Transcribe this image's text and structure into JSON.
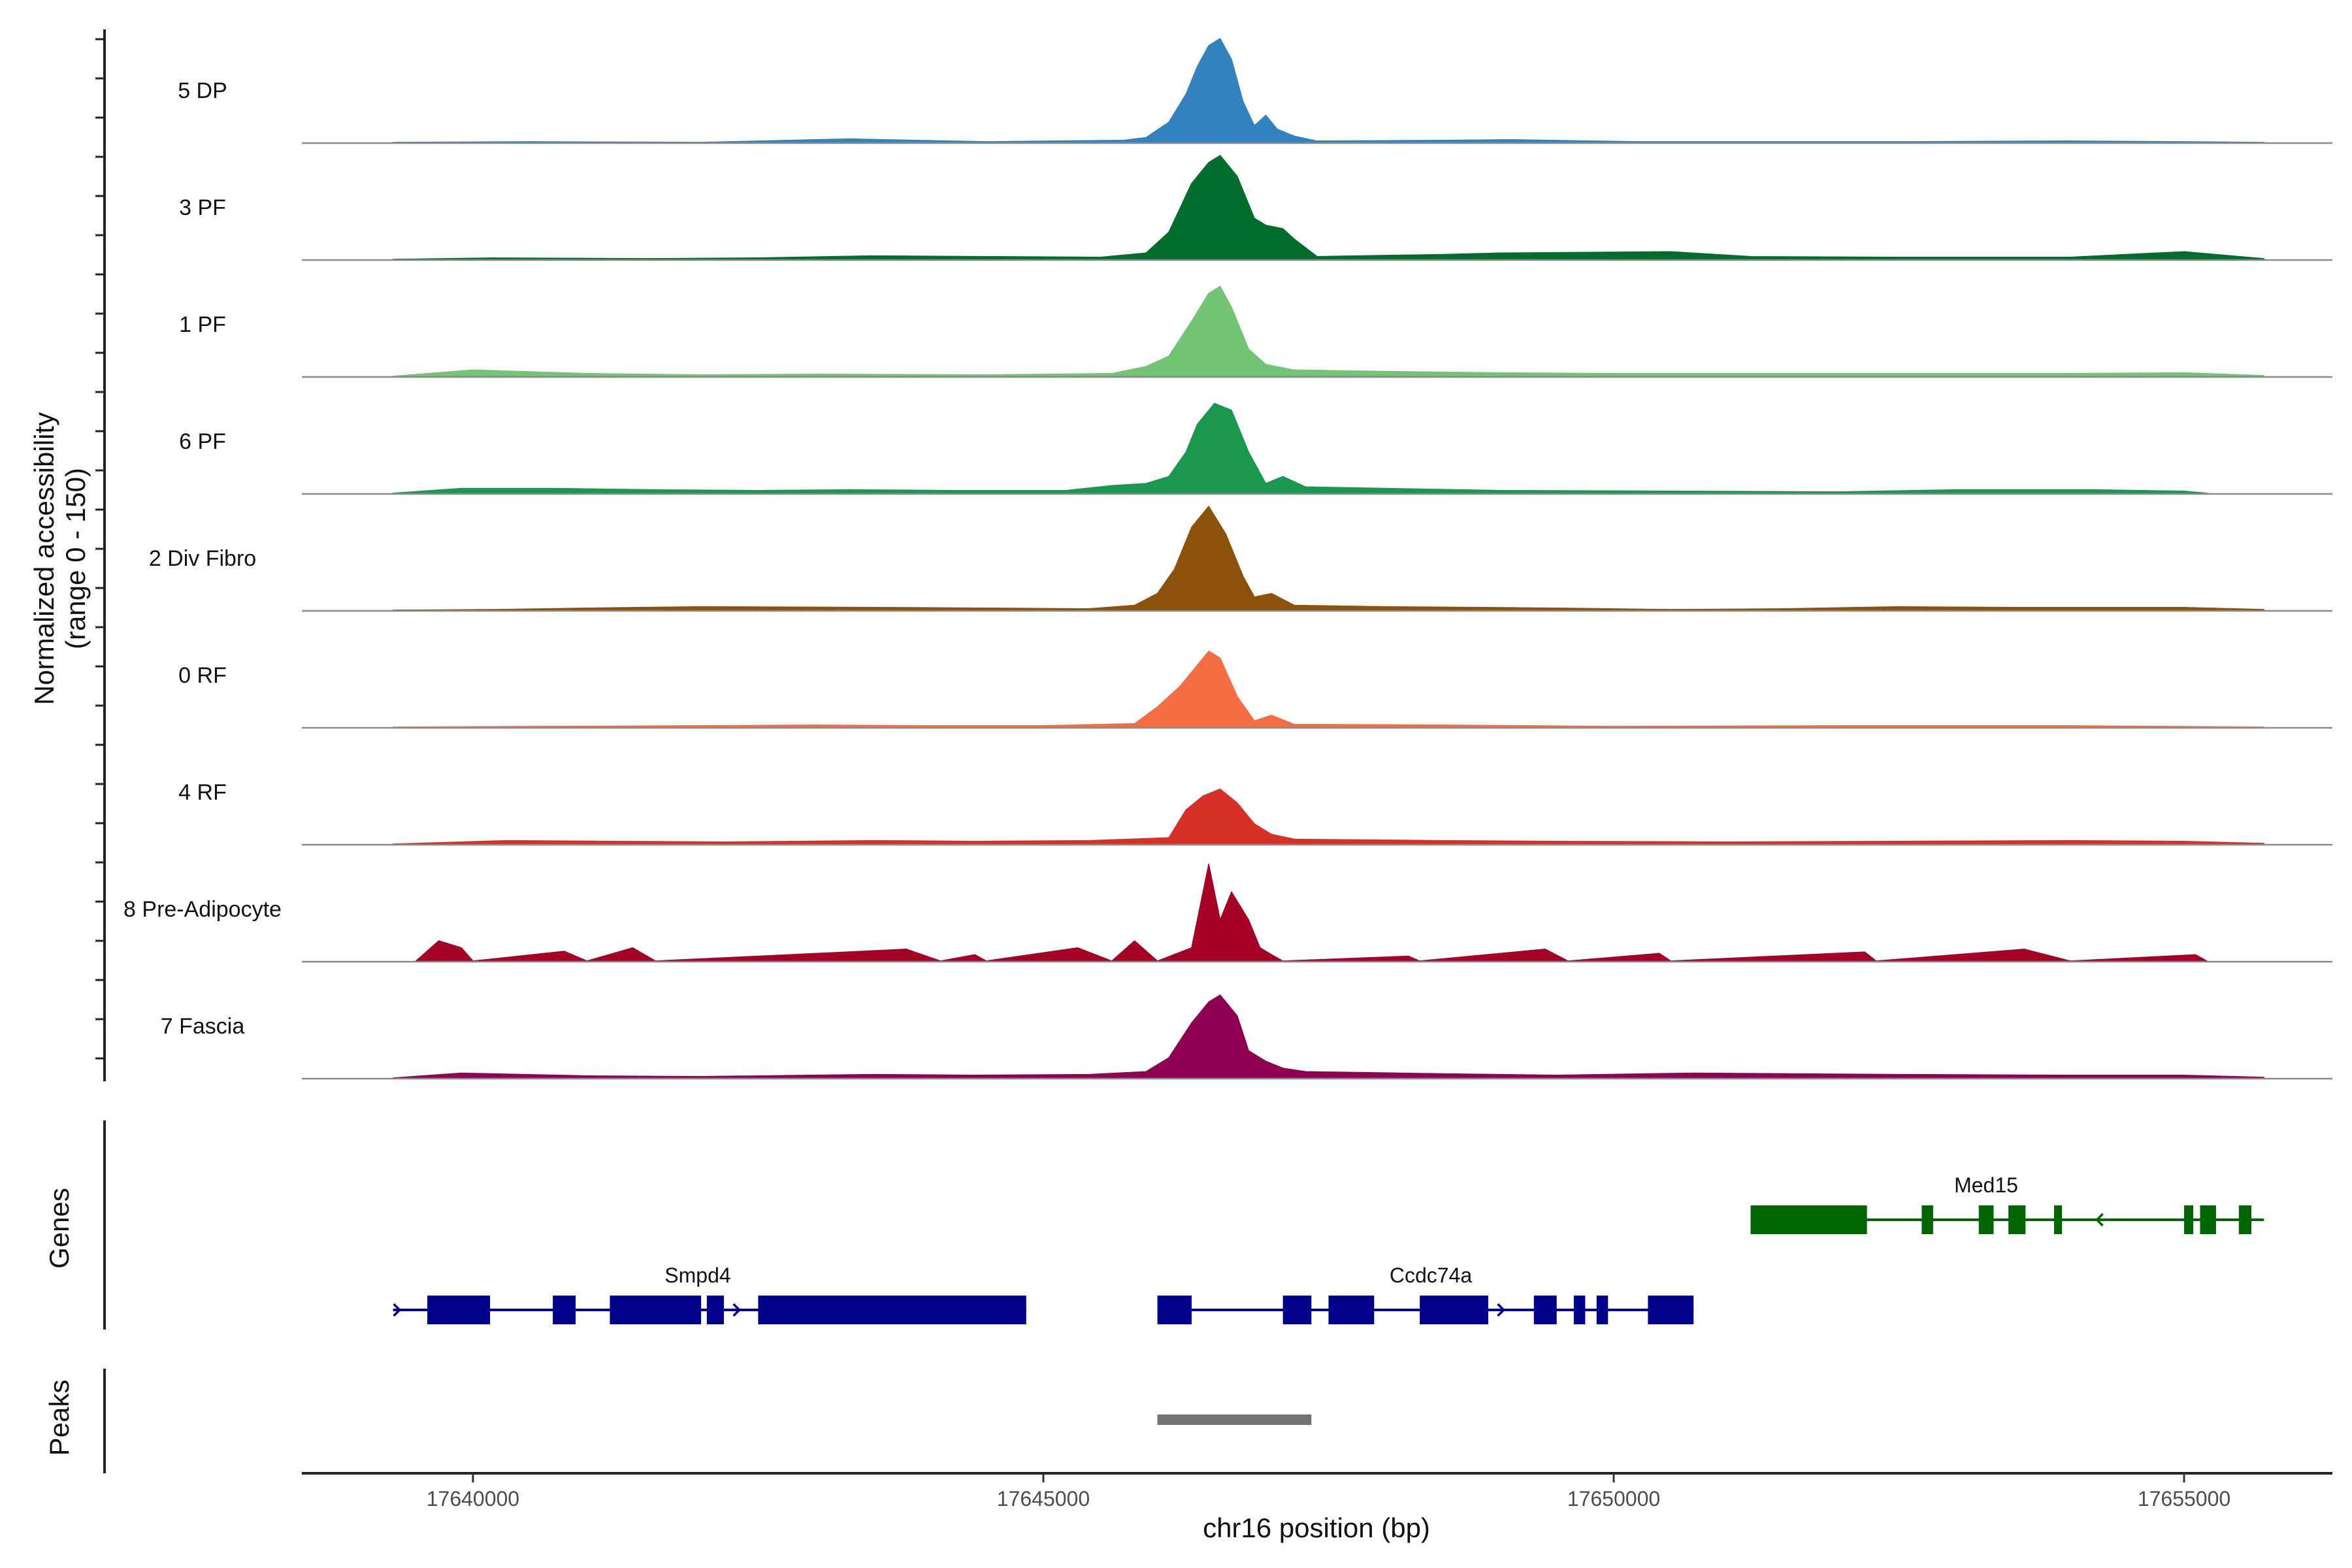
{
  "chart_data": {
    "type": "area",
    "title": "",
    "chromosome": "chr16",
    "xlabel": "chr16 position (bp)",
    "ylabel": "Normalized accessibility",
    "ylabel_range": "(range 0 - 150)",
    "ylim": [
      0,
      150
    ],
    "xlim": [
      17638500,
      17656300
    ],
    "x_ticks": [
      17640000,
      17645000,
      17650000,
      17655000
    ],
    "x_tick_labels": [
      "17640000",
      "17645000",
      "17650000",
      "17655000"
    ],
    "series": [
      {
        "name": "5 DP",
        "color": "#3182BD",
        "points": [
          [
            17639300,
            1
          ],
          [
            17640500,
            2
          ],
          [
            17642000,
            1
          ],
          [
            17643300,
            6
          ],
          [
            17644500,
            2
          ],
          [
            17645700,
            4
          ],
          [
            17645900,
            8
          ],
          [
            17646100,
            30
          ],
          [
            17646250,
            70
          ],
          [
            17646350,
            110
          ],
          [
            17646450,
            140
          ],
          [
            17646550,
            150
          ],
          [
            17646650,
            120
          ],
          [
            17646750,
            60
          ],
          [
            17646850,
            25
          ],
          [
            17646950,
            40
          ],
          [
            17647050,
            20
          ],
          [
            17647200,
            10
          ],
          [
            17647400,
            3
          ],
          [
            17648500,
            4
          ],
          [
            17649100,
            5
          ],
          [
            17650200,
            2
          ],
          [
            17652500,
            2
          ],
          [
            17654000,
            3
          ],
          [
            17655000,
            2
          ],
          [
            17655700,
            1
          ]
        ]
      },
      {
        "name": "3 PF",
        "color": "#006D2C",
        "points": [
          [
            17639300,
            1
          ],
          [
            17640200,
            3
          ],
          [
            17641500,
            2
          ],
          [
            17642500,
            3
          ],
          [
            17643500,
            6
          ],
          [
            17644500,
            5
          ],
          [
            17645500,
            4
          ],
          [
            17645900,
            10
          ],
          [
            17646100,
            40
          ],
          [
            17646300,
            110
          ],
          [
            17646450,
            140
          ],
          [
            17646550,
            150
          ],
          [
            17646700,
            120
          ],
          [
            17646850,
            60
          ],
          [
            17646950,
            50
          ],
          [
            17647100,
            45
          ],
          [
            17647200,
            30
          ],
          [
            17647400,
            5
          ],
          [
            17648500,
            8
          ],
          [
            17649000,
            10
          ],
          [
            17650500,
            12
          ],
          [
            17651200,
            5
          ],
          [
            17652500,
            4
          ],
          [
            17654000,
            4
          ],
          [
            17655000,
            12
          ],
          [
            17655700,
            2
          ]
        ]
      },
      {
        "name": "1 PF",
        "color": "#74C476",
        "points": [
          [
            17639300,
            1
          ],
          [
            17640000,
            10
          ],
          [
            17641000,
            5
          ],
          [
            17642000,
            3
          ],
          [
            17643000,
            4
          ],
          [
            17644500,
            3
          ],
          [
            17645600,
            5
          ],
          [
            17645900,
            15
          ],
          [
            17646100,
            30
          ],
          [
            17646300,
            80
          ],
          [
            17646450,
            120
          ],
          [
            17646550,
            130
          ],
          [
            17646650,
            100
          ],
          [
            17646800,
            40
          ],
          [
            17646950,
            18
          ],
          [
            17647200,
            10
          ],
          [
            17648000,
            8
          ],
          [
            17649000,
            6
          ],
          [
            17650000,
            5
          ],
          [
            17651000,
            5
          ],
          [
            17652500,
            5
          ],
          [
            17654000,
            5
          ],
          [
            17655000,
            6
          ],
          [
            17655700,
            2
          ]
        ]
      },
      {
        "name": "6 PF",
        "color": "#1A9850",
        "points": [
          [
            17639300,
            1
          ],
          [
            17639900,
            8
          ],
          [
            17640700,
            8
          ],
          [
            17641600,
            6
          ],
          [
            17642500,
            5
          ],
          [
            17643300,
            6
          ],
          [
            17644200,
            5
          ],
          [
            17645200,
            5
          ],
          [
            17645600,
            12
          ],
          [
            17645900,
            15
          ],
          [
            17646100,
            25
          ],
          [
            17646250,
            60
          ],
          [
            17646350,
            100
          ],
          [
            17646500,
            130
          ],
          [
            17646650,
            120
          ],
          [
            17646800,
            60
          ],
          [
            17646950,
            15
          ],
          [
            17647100,
            25
          ],
          [
            17647300,
            10
          ],
          [
            17648000,
            8
          ],
          [
            17649000,
            5
          ],
          [
            17650500,
            4
          ],
          [
            17652000,
            3
          ],
          [
            17653000,
            6
          ],
          [
            17654200,
            6
          ],
          [
            17655000,
            4
          ],
          [
            17655200,
            1
          ]
        ]
      },
      {
        "name": "2 Div Fibro",
        "color": "#8C510A",
        "points": [
          [
            17639300,
            1
          ],
          [
            17640200,
            2
          ],
          [
            17641000,
            4
          ],
          [
            17642000,
            6
          ],
          [
            17643500,
            5
          ],
          [
            17644500,
            4
          ],
          [
            17645400,
            3
          ],
          [
            17645800,
            8
          ],
          [
            17646000,
            25
          ],
          [
            17646150,
            60
          ],
          [
            17646300,
            120
          ],
          [
            17646450,
            150
          ],
          [
            17646600,
            110
          ],
          [
            17646750,
            50
          ],
          [
            17646850,
            20
          ],
          [
            17647000,
            25
          ],
          [
            17647200,
            8
          ],
          [
            17648000,
            6
          ],
          [
            17649500,
            4
          ],
          [
            17650500,
            2
          ],
          [
            17651500,
            3
          ],
          [
            17652500,
            6
          ],
          [
            17653500,
            5
          ],
          [
            17655000,
            5
          ],
          [
            17655700,
            2
          ]
        ]
      },
      {
        "name": "0 RF",
        "color": "#F46D43",
        "points": [
          [
            17639300,
            1
          ],
          [
            17640500,
            2
          ],
          [
            17642000,
            3
          ],
          [
            17643000,
            4
          ],
          [
            17644000,
            3
          ],
          [
            17645000,
            3
          ],
          [
            17645800,
            6
          ],
          [
            17646000,
            30
          ],
          [
            17646200,
            60
          ],
          [
            17646350,
            90
          ],
          [
            17646450,
            110
          ],
          [
            17646550,
            100
          ],
          [
            17646700,
            45
          ],
          [
            17646850,
            10
          ],
          [
            17647000,
            18
          ],
          [
            17647200,
            5
          ],
          [
            17648500,
            4
          ],
          [
            17650000,
            2
          ],
          [
            17652000,
            3
          ],
          [
            17654000,
            3
          ],
          [
            17655700,
            1
          ]
        ]
      },
      {
        "name": "4 RF",
        "color": "#D73027",
        "points": [
          [
            17639300,
            1
          ],
          [
            17640300,
            6
          ],
          [
            17641200,
            5
          ],
          [
            17642200,
            4
          ],
          [
            17643500,
            6
          ],
          [
            17644400,
            5
          ],
          [
            17645400,
            6
          ],
          [
            17646100,
            10
          ],
          [
            17646250,
            50
          ],
          [
            17646400,
            70
          ],
          [
            17646550,
            80
          ],
          [
            17646700,
            60
          ],
          [
            17646850,
            30
          ],
          [
            17647000,
            15
          ],
          [
            17647200,
            8
          ],
          [
            17648500,
            6
          ],
          [
            17649500,
            5
          ],
          [
            17651000,
            4
          ],
          [
            17652500,
            5
          ],
          [
            17654000,
            6
          ],
          [
            17655000,
            5
          ],
          [
            17655700,
            2
          ]
        ]
      },
      {
        "name": "8 Pre-Adipocyte",
        "color": "#A50026",
        "points": [
          [
            17639500,
            1
          ],
          [
            17639700,
            30
          ],
          [
            17639900,
            20
          ],
          [
            17640000,
            1
          ],
          [
            17640800,
            15
          ],
          [
            17641000,
            1
          ],
          [
            17641400,
            20
          ],
          [
            17641600,
            1
          ],
          [
            17643800,
            18
          ],
          [
            17644100,
            1
          ],
          [
            17644400,
            10
          ],
          [
            17644500,
            1
          ],
          [
            17645300,
            20
          ],
          [
            17645600,
            1
          ],
          [
            17645800,
            30
          ],
          [
            17646000,
            1
          ],
          [
            17646300,
            20
          ],
          [
            17646450,
            140
          ],
          [
            17646550,
            60
          ],
          [
            17646650,
            100
          ],
          [
            17646800,
            60
          ],
          [
            17646900,
            20
          ],
          [
            17647000,
            10
          ],
          [
            17647100,
            1
          ],
          [
            17648200,
            8
          ],
          [
            17648300,
            1
          ],
          [
            17649400,
            18
          ],
          [
            17649600,
            1
          ],
          [
            17650400,
            12
          ],
          [
            17650500,
            1
          ],
          [
            17652200,
            14
          ],
          [
            17652300,
            1
          ],
          [
            17653600,
            18
          ],
          [
            17654000,
            1
          ],
          [
            17655100,
            10
          ],
          [
            17655200,
            1
          ]
        ]
      },
      {
        "name": "7 Fascia",
        "color": "#8E0152",
        "points": [
          [
            17639300,
            1
          ],
          [
            17639900,
            8
          ],
          [
            17641000,
            4
          ],
          [
            17642000,
            3
          ],
          [
            17643500,
            6
          ],
          [
            17644400,
            5
          ],
          [
            17645400,
            6
          ],
          [
            17645900,
            10
          ],
          [
            17646100,
            30
          ],
          [
            17646300,
            80
          ],
          [
            17646450,
            110
          ],
          [
            17646550,
            120
          ],
          [
            17646700,
            90
          ],
          [
            17646800,
            40
          ],
          [
            17646950,
            25
          ],
          [
            17647100,
            15
          ],
          [
            17647300,
            10
          ],
          [
            17648500,
            7
          ],
          [
            17649500,
            5
          ],
          [
            17650700,
            8
          ],
          [
            17652500,
            6
          ],
          [
            17654000,
            5
          ],
          [
            17655000,
            5
          ],
          [
            17655700,
            2
          ]
        ]
      }
    ],
    "genes": [
      {
        "name": "Smpd4",
        "strand": "+",
        "color": "#00008B",
        "start": 17639300,
        "end": 17644850,
        "exons": [
          [
            17639600,
            17640150
          ],
          [
            17640700,
            17640900
          ],
          [
            17641200,
            17642000
          ],
          [
            17642050,
            17642200
          ],
          [
            17642500,
            17644850
          ]
        ]
      },
      {
        "name": "Ccdc74a",
        "strand": "+",
        "color": "#00008B",
        "start": 17646000,
        "end": 17650700,
        "exons": [
          [
            17646000,
            17646300
          ],
          [
            17647100,
            17647350
          ],
          [
            17647500,
            17647900
          ],
          [
            17648300,
            17648900
          ],
          [
            17649300,
            17649500
          ],
          [
            17649650,
            17649750
          ],
          [
            17649850,
            17649950
          ],
          [
            17650300,
            17650700
          ]
        ]
      },
      {
        "name": "Med15",
        "strand": "-",
        "color": "#006400",
        "start": 17651200,
        "end": 17655700,
        "exons": [
          [
            17651200,
            17652220
          ],
          [
            17652700,
            17652800
          ],
          [
            17653200,
            17653330
          ],
          [
            17653460,
            17653610
          ],
          [
            17653860,
            17653930
          ],
          [
            17655000,
            17655080
          ],
          [
            17655140,
            17655280
          ],
          [
            17655480,
            17655590
          ]
        ]
      }
    ],
    "peaks": [
      [
        17646000,
        17647350
      ]
    ],
    "tracks": {
      "genes_label": "Genes",
      "peaks_label": "Peaks"
    }
  }
}
